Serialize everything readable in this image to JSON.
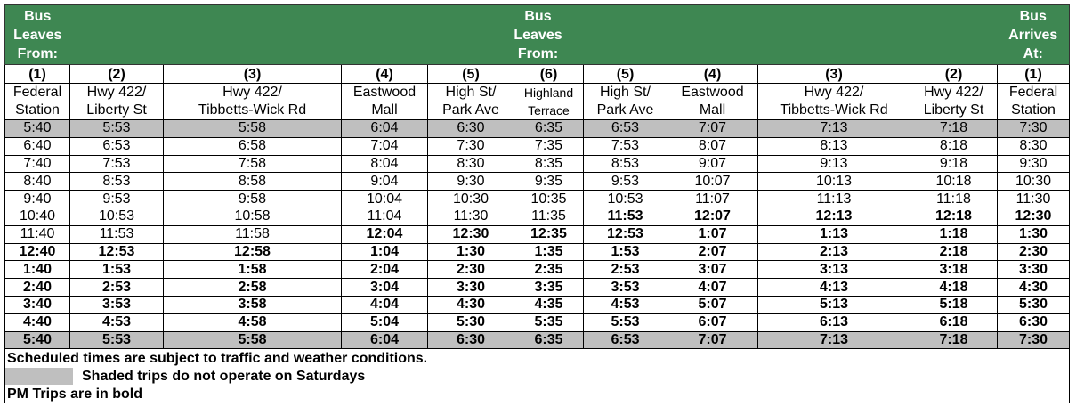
{
  "header": {
    "left": [
      "Bus",
      "Leaves",
      "From:"
    ],
    "middle": [
      "Bus",
      "Leaves",
      "From:"
    ],
    "right": [
      "Bus",
      "Arrives",
      "At:"
    ],
    "color": "#3e8752"
  },
  "stops": [
    {
      "num": "(1)",
      "name": [
        "Federal",
        "Station"
      ]
    },
    {
      "num": "(2)",
      "name": [
        "Hwy 422/",
        "Liberty St"
      ]
    },
    {
      "num": "(3)",
      "name": [
        "Hwy 422/",
        "Tibbetts-Wick Rd"
      ]
    },
    {
      "num": "(4)",
      "name": [
        "Eastwood",
        "Mall"
      ]
    },
    {
      "num": "(5)",
      "name": [
        "High St/",
        "Park Ave"
      ]
    },
    {
      "num": "(6)",
      "name": [
        "Highland",
        "Terrace"
      ]
    },
    {
      "num": "(5)",
      "name": [
        "High St/",
        "Park Ave"
      ]
    },
    {
      "num": "(4)",
      "name": [
        "Eastwood",
        "Mall"
      ]
    },
    {
      "num": "(3)",
      "name": [
        "Hwy 422/",
        "Tibbetts-Wick Rd"
      ]
    },
    {
      "num": "(2)",
      "name": [
        "Hwy 422/",
        "Liberty St"
      ]
    },
    {
      "num": "(1)",
      "name": [
        "Federal",
        "Station"
      ]
    }
  ],
  "trips": [
    {
      "shaded": true,
      "pm_from": 99,
      "times": [
        "5:40",
        "5:53",
        "5:58",
        "6:04",
        "6:30",
        "6:35",
        "6:53",
        "7:07",
        "7:13",
        "7:18",
        "7:30"
      ]
    },
    {
      "shaded": false,
      "pm_from": 99,
      "times": [
        "6:40",
        "6:53",
        "6:58",
        "7:04",
        "7:30",
        "7:35",
        "7:53",
        "8:07",
        "8:13",
        "8:18",
        "8:30"
      ]
    },
    {
      "shaded": false,
      "pm_from": 99,
      "times": [
        "7:40",
        "7:53",
        "7:58",
        "8:04",
        "8:30",
        "8:35",
        "8:53",
        "9:07",
        "9:13",
        "9:18",
        "9:30"
      ]
    },
    {
      "shaded": false,
      "pm_from": 99,
      "times": [
        "8:40",
        "8:53",
        "8:58",
        "9:04",
        "9:30",
        "9:35",
        "9:53",
        "10:07",
        "10:13",
        "10:18",
        "10:30"
      ]
    },
    {
      "shaded": false,
      "pm_from": 99,
      "times": [
        "9:40",
        "9:53",
        "9:58",
        "10:04",
        "10:30",
        "10:35",
        "10:53",
        "11:07",
        "11:13",
        "11:18",
        "11:30"
      ]
    },
    {
      "shaded": false,
      "pm_from": 6,
      "times": [
        "10:40",
        "10:53",
        "10:58",
        "11:04",
        "11:30",
        "11:35",
        "11:53",
        "12:07",
        "12:13",
        "12:18",
        "12:30"
      ]
    },
    {
      "shaded": false,
      "pm_from": 3,
      "times": [
        "11:40",
        "11:53",
        "11:58",
        "12:04",
        "12:30",
        "12:35",
        "12:53",
        "1:07",
        "1:13",
        "1:18",
        "1:30"
      ]
    },
    {
      "shaded": false,
      "pm_from": 0,
      "times": [
        "12:40",
        "12:53",
        "12:58",
        "1:04",
        "1:30",
        "1:35",
        "1:53",
        "2:07",
        "2:13",
        "2:18",
        "2:30"
      ]
    },
    {
      "shaded": false,
      "pm_from": 0,
      "times": [
        "1:40",
        "1:53",
        "1:58",
        "2:04",
        "2:30",
        "2:35",
        "2:53",
        "3:07",
        "3:13",
        "3:18",
        "3:30"
      ]
    },
    {
      "shaded": false,
      "pm_from": 0,
      "times": [
        "2:40",
        "2:53",
        "2:58",
        "3:04",
        "3:30",
        "3:35",
        "3:53",
        "4:07",
        "4:13",
        "4:18",
        "4:30"
      ]
    },
    {
      "shaded": false,
      "pm_from": 0,
      "times": [
        "3:40",
        "3:53",
        "3:58",
        "4:04",
        "4:30",
        "4:35",
        "4:53",
        "5:07",
        "5:13",
        "5:18",
        "5:30"
      ]
    },
    {
      "shaded": false,
      "pm_from": 0,
      "times": [
        "4:40",
        "4:53",
        "4:58",
        "5:04",
        "5:30",
        "5:35",
        "5:53",
        "6:07",
        "6:13",
        "6:18",
        "6:30"
      ]
    },
    {
      "shaded": true,
      "pm_from": 0,
      "times": [
        "5:40",
        "5:53",
        "5:58",
        "6:04",
        "6:30",
        "6:35",
        "6:53",
        "7:07",
        "7:13",
        "7:18",
        "7:30"
      ]
    }
  ],
  "notes": {
    "traffic": "Scheduled times are subject to traffic and weather conditions.",
    "shaded": "Shaded trips do not operate on Saturdays",
    "bold": "PM Trips are in bold",
    "shade_color": "#bfbfbf"
  }
}
